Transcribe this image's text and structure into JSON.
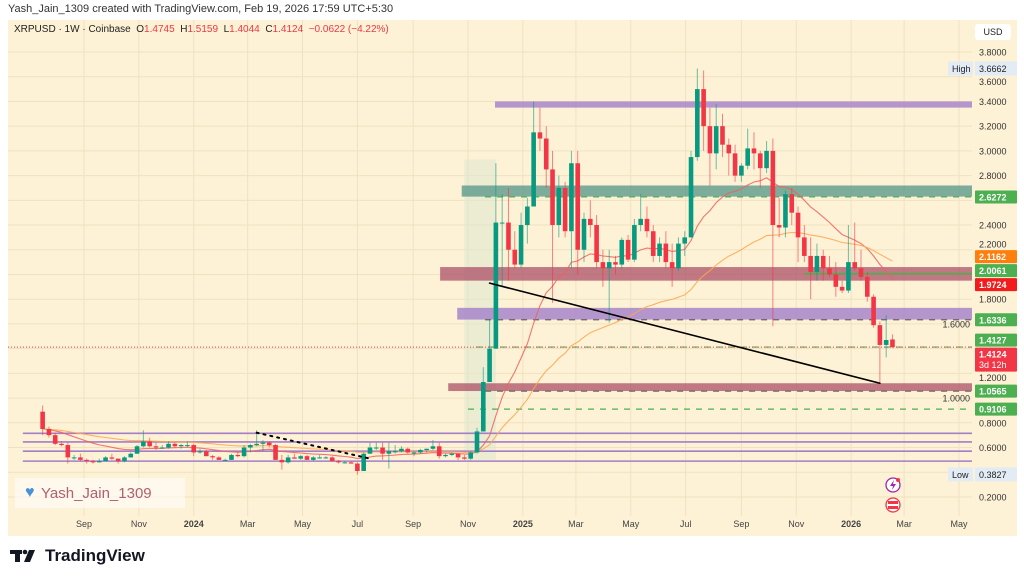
{
  "header": {
    "credit": "Yash_Jain_1309 created with TradingView.com, Feb 19, 2026 17:59 UTC+5:30"
  },
  "legend": {
    "symbol": "XRPUSD · 1W · Coinbase",
    "o_label": "O",
    "o": "1.4745",
    "h_label": "H",
    "h": "1.5159",
    "l_label": "L",
    "l": "1.4044",
    "c_label": "C",
    "c": "1.4124",
    "change": "−0.0622 (−4.22%)"
  },
  "axis": {
    "currency": "USD"
  },
  "watermark": {
    "text": "Yash_Jain_1309",
    "icon": "blue-heart-icon"
  },
  "footer": {
    "brand": "TradingView",
    "icon": "tradingview-logo-icon"
  },
  "colors": {
    "up": "#089981",
    "down": "#f23645",
    "background": "#fdf2d6",
    "ema_fast": "#f0605a",
    "ema_slow": "#ffa64d",
    "zone_purple": "#a37ec9",
    "zone_teal": "#5d9a8c",
    "zone_red": "#b0596e",
    "level_green": "#4caf50"
  },
  "bottom_icons": [
    "lightning-icon",
    "us-flag-icon"
  ],
  "chart_data": {
    "type": "candlestick",
    "symbol": "XRPUSD",
    "interval": "1W",
    "ylim": [
      0.1,
      3.95
    ],
    "y_ticks": [
      "3.8000",
      "3.6000",
      "3.4000",
      "3.2000",
      "3.0000",
      "2.8000",
      "2.4000",
      "2.2000",
      "1.8000",
      "1.6000",
      "1.2000",
      "1.0000",
      "0.8000",
      "0.6000",
      "0.2000"
    ],
    "x_ticks": [
      {
        "label": "Sep",
        "date": "2023-09-01"
      },
      {
        "label": "Nov",
        "date": "2023-11-01"
      },
      {
        "label": "2024",
        "date": "2024-01-01",
        "bold": true
      },
      {
        "label": "Mar",
        "date": "2024-03-01"
      },
      {
        "label": "May",
        "date": "2024-05-01"
      },
      {
        "label": "Jul",
        "date": "2024-07-01"
      },
      {
        "label": "Sep",
        "date": "2024-09-01"
      },
      {
        "label": "Nov",
        "date": "2024-11-01"
      },
      {
        "label": "2025",
        "date": "2025-01-01",
        "bold": true
      },
      {
        "label": "Mar",
        "date": "2025-03-01"
      },
      {
        "label": "May",
        "date": "2025-05-01"
      },
      {
        "label": "Jul",
        "date": "2025-07-01"
      },
      {
        "label": "Sep",
        "date": "2025-09-01"
      },
      {
        "label": "Nov",
        "date": "2025-11-01"
      },
      {
        "label": "2026",
        "date": "2026-01-01",
        "bold": true
      },
      {
        "label": "Mar",
        "date": "2026-03-01"
      },
      {
        "label": "May",
        "date": "2026-05-01"
      }
    ],
    "high": {
      "label": "High",
      "value": "3.6662"
    },
    "low": {
      "label": "Low",
      "value": "0.3827"
    },
    "price_badges": [
      {
        "value": "2.6272",
        "color": "#4caf50"
      },
      {
        "value": "2.1162",
        "color": "#ff7f0e"
      },
      {
        "value": "2.0061",
        "color": "#4caf50"
      },
      {
        "value": "1.9724",
        "color": "#f21c1c"
      },
      {
        "value": "1.6336",
        "color": "#4caf50"
      },
      {
        "value": "1.4127",
        "color": "#4caf50"
      },
      {
        "value": "1.4124",
        "color": "#f23645",
        "sub": "3d 12h"
      },
      {
        "value": "1.0565",
        "color": "#4caf50"
      },
      {
        "value": "0.9106",
        "color": "#4caf50"
      }
    ],
    "zones": [
      {
        "from": "2024-12-01",
        "top": 3.4,
        "bottom": 3.35,
        "color": "#a37ec9"
      },
      {
        "from": "2024-10-25",
        "top": 2.72,
        "bottom": 2.63,
        "color": "#5d9a8c"
      },
      {
        "from": "2024-10-01",
        "top": 2.06,
        "bottom": 1.95,
        "color": "#b0596e"
      },
      {
        "from": "2024-10-20",
        "top": 1.73,
        "bottom": 1.635,
        "color": "#a37ec9"
      },
      {
        "from": "2024-10-10",
        "top": 1.12,
        "bottom": 1.057,
        "color": "#b0596e"
      }
    ],
    "horizontal_lines": [
      {
        "price": 2.6272,
        "from": "2024-11-20",
        "style": "dashed",
        "color": "#4caf50"
      },
      {
        "price": 2.0061,
        "from": "2025-11-10",
        "style": "solid",
        "color": "#4caf50"
      },
      {
        "price": 1.6336,
        "from": "2024-11-20",
        "style": "dashed",
        "color": "#666666"
      },
      {
        "price": 1.4127,
        "from": "2024-11-10",
        "style": "dashed",
        "color": "#4caf50"
      },
      {
        "price": 1.0565,
        "from": "2024-11-20",
        "style": "dashed",
        "color": "#666666"
      },
      {
        "price": 0.9106,
        "from": "2024-11-01",
        "style": "dashed",
        "color": "#4caf50"
      },
      {
        "price": 0.715,
        "from": "2023-06-25",
        "style": "solid",
        "color": "#a37ec9"
      },
      {
        "price": 0.645,
        "from": "2023-06-25",
        "style": "solid",
        "color": "#a37ec9"
      },
      {
        "price": 0.57,
        "from": "2023-06-25",
        "style": "solid",
        "color": "#a37ec9"
      },
      {
        "price": 0.49,
        "from": "2023-06-25",
        "style": "solid",
        "color": "#a37ec9"
      }
    ],
    "last_price_line": {
      "price": 1.4124,
      "color": "#f23645"
    },
    "trend_lines": [
      {
        "from": {
          "date": "2024-11-25",
          "price": 1.93
        },
        "to": {
          "date": "2026-02-02",
          "price": 1.12
        },
        "style": "solid",
        "color": "#000000"
      },
      {
        "from": {
          "date": "2024-03-11",
          "price": 0.72
        },
        "to": {
          "date": "2024-07-15",
          "price": 0.51
        },
        "style": "dotted",
        "color": "#000000"
      }
    ],
    "date_range_box": {
      "from": "2024-10-28",
      "to": "2024-12-02",
      "top": 2.93,
      "bottom": 0.5
    },
    "candles": [
      [
        "2023-07-17",
        0.89,
        0.94,
        0.7,
        0.75
      ],
      [
        "2023-07-24",
        0.75,
        0.77,
        0.68,
        0.7
      ],
      [
        "2023-07-31",
        0.7,
        0.72,
        0.62,
        0.63
      ],
      [
        "2023-08-07",
        0.63,
        0.65,
        0.61,
        0.62
      ],
      [
        "2023-08-14",
        0.62,
        0.64,
        0.47,
        0.52
      ],
      [
        "2023-08-21",
        0.52,
        0.54,
        0.5,
        0.52
      ],
      [
        "2023-08-28",
        0.52,
        0.55,
        0.49,
        0.5
      ],
      [
        "2023-09-04",
        0.5,
        0.51,
        0.47,
        0.49
      ],
      [
        "2023-09-11",
        0.49,
        0.5,
        0.47,
        0.48
      ],
      [
        "2023-09-18",
        0.48,
        0.51,
        0.48,
        0.49
      ],
      [
        "2023-09-25",
        0.49,
        0.53,
        0.49,
        0.52
      ],
      [
        "2023-10-02",
        0.52,
        0.55,
        0.5,
        0.51
      ],
      [
        "2023-10-09",
        0.51,
        0.51,
        0.47,
        0.49
      ],
      [
        "2023-10-16",
        0.49,
        0.53,
        0.48,
        0.52
      ],
      [
        "2023-10-23",
        0.52,
        0.56,
        0.52,
        0.55
      ],
      [
        "2023-10-30",
        0.55,
        0.62,
        0.55,
        0.61
      ],
      [
        "2023-11-06",
        0.61,
        0.74,
        0.6,
        0.65
      ],
      [
        "2023-11-13",
        0.65,
        0.68,
        0.6,
        0.61
      ],
      [
        "2023-11-20",
        0.61,
        0.64,
        0.58,
        0.6
      ],
      [
        "2023-11-27",
        0.6,
        0.62,
        0.59,
        0.6
      ],
      [
        "2023-12-04",
        0.6,
        0.65,
        0.59,
        0.63
      ],
      [
        "2023-12-11",
        0.63,
        0.64,
        0.6,
        0.61
      ],
      [
        "2023-12-18",
        0.61,
        0.63,
        0.59,
        0.62
      ],
      [
        "2023-12-25",
        0.62,
        0.65,
        0.6,
        0.62
      ],
      [
        "2024-01-01",
        0.62,
        0.63,
        0.53,
        0.56
      ],
      [
        "2024-01-08",
        0.56,
        0.59,
        0.55,
        0.57
      ],
      [
        "2024-01-15",
        0.57,
        0.58,
        0.53,
        0.53
      ],
      [
        "2024-01-22",
        0.53,
        0.54,
        0.5,
        0.52
      ],
      [
        "2024-01-29",
        0.52,
        0.53,
        0.5,
        0.5
      ],
      [
        "2024-02-05",
        0.5,
        0.51,
        0.49,
        0.5
      ],
      [
        "2024-02-12",
        0.5,
        0.55,
        0.5,
        0.54
      ],
      [
        "2024-02-19",
        0.54,
        0.56,
        0.52,
        0.53
      ],
      [
        "2024-02-26",
        0.53,
        0.62,
        0.52,
        0.6
      ],
      [
        "2024-03-04",
        0.6,
        0.63,
        0.56,
        0.62
      ],
      [
        "2024-03-11",
        0.62,
        0.74,
        0.61,
        0.63
      ],
      [
        "2024-03-18",
        0.63,
        0.66,
        0.57,
        0.64
      ],
      [
        "2024-03-25",
        0.64,
        0.65,
        0.6,
        0.62
      ],
      [
        "2024-04-01",
        0.62,
        0.63,
        0.5,
        0.5
      ],
      [
        "2024-04-08",
        0.5,
        0.54,
        0.42,
        0.48
      ],
      [
        "2024-04-15",
        0.48,
        0.54,
        0.47,
        0.52
      ],
      [
        "2024-04-22",
        0.52,
        0.55,
        0.51,
        0.51
      ],
      [
        "2024-04-29",
        0.51,
        0.54,
        0.5,
        0.53
      ],
      [
        "2024-05-06",
        0.53,
        0.54,
        0.5,
        0.5
      ],
      [
        "2024-05-13",
        0.5,
        0.53,
        0.49,
        0.52
      ],
      [
        "2024-05-20",
        0.52,
        0.54,
        0.51,
        0.52
      ],
      [
        "2024-05-27",
        0.52,
        0.53,
        0.51,
        0.52
      ],
      [
        "2024-06-03",
        0.52,
        0.53,
        0.49,
        0.49
      ],
      [
        "2024-06-10",
        0.49,
        0.5,
        0.47,
        0.48
      ],
      [
        "2024-06-17",
        0.48,
        0.49,
        0.47,
        0.48
      ],
      [
        "2024-06-24",
        0.48,
        0.49,
        0.47,
        0.47
      ],
      [
        "2024-07-01",
        0.47,
        0.48,
        0.38,
        0.41
      ],
      [
        "2024-07-08",
        0.41,
        0.56,
        0.41,
        0.55
      ],
      [
        "2024-07-15",
        0.55,
        0.64,
        0.55,
        0.6
      ],
      [
        "2024-07-22",
        0.6,
        0.64,
        0.58,
        0.6
      ],
      [
        "2024-07-29",
        0.6,
        0.64,
        0.5,
        0.55
      ],
      [
        "2024-08-05",
        0.55,
        0.64,
        0.43,
        0.57
      ],
      [
        "2024-08-12",
        0.57,
        0.62,
        0.55,
        0.57
      ],
      [
        "2024-08-19",
        0.57,
        0.61,
        0.56,
        0.59
      ],
      [
        "2024-08-26",
        0.59,
        0.6,
        0.55,
        0.56
      ],
      [
        "2024-09-02",
        0.56,
        0.57,
        0.53,
        0.56
      ],
      [
        "2024-09-09",
        0.56,
        0.59,
        0.55,
        0.58
      ],
      [
        "2024-09-16",
        0.58,
        0.59,
        0.56,
        0.59
      ],
      [
        "2024-09-23",
        0.59,
        0.66,
        0.58,
        0.61
      ],
      [
        "2024-09-30",
        0.61,
        0.64,
        0.51,
        0.53
      ],
      [
        "2024-10-07",
        0.53,
        0.55,
        0.52,
        0.54
      ],
      [
        "2024-10-14",
        0.54,
        0.56,
        0.53,
        0.55
      ],
      [
        "2024-10-21",
        0.55,
        0.55,
        0.5,
        0.52
      ],
      [
        "2024-10-28",
        0.52,
        0.54,
        0.5,
        0.51
      ],
      [
        "2024-11-04",
        0.51,
        0.57,
        0.5,
        0.56
      ],
      [
        "2024-11-11",
        0.56,
        0.76,
        0.55,
        0.73
      ],
      [
        "2024-11-18",
        0.73,
        1.25,
        0.73,
        1.13
      ],
      [
        "2024-11-25",
        1.13,
        1.63,
        1.13,
        1.4
      ],
      [
        "2024-12-02",
        1.4,
        2.9,
        1.4,
        2.42
      ],
      [
        "2024-12-09",
        2.42,
        2.65,
        1.9,
        2.42
      ],
      [
        "2024-12-16",
        2.42,
        2.7,
        1.95,
        2.2
      ],
      [
        "2024-12-23",
        2.2,
        2.35,
        2.05,
        2.08
      ],
      [
        "2024-12-30",
        2.08,
        2.5,
        2.05,
        2.4
      ],
      [
        "2025-01-06",
        2.4,
        2.62,
        2.25,
        2.55
      ],
      [
        "2025-01-13",
        2.55,
        3.4,
        2.55,
        3.15
      ],
      [
        "2025-01-20",
        3.15,
        3.35,
        3.0,
        3.1
      ],
      [
        "2025-01-27",
        3.1,
        3.2,
        2.7,
        2.85
      ],
      [
        "2025-02-03",
        2.85,
        3.0,
        1.77,
        2.4
      ],
      [
        "2025-02-10",
        2.4,
        2.8,
        2.3,
        2.7
      ],
      [
        "2025-02-17",
        2.7,
        2.75,
        2.3,
        2.35
      ],
      [
        "2025-02-24",
        2.35,
        3.0,
        2.05,
        2.9
      ],
      [
        "2025-03-03",
        2.9,
        3.0,
        2.0,
        2.2
      ],
      [
        "2025-03-10",
        2.2,
        2.5,
        2.1,
        2.45
      ],
      [
        "2025-03-17",
        2.45,
        2.6,
        2.3,
        2.4
      ],
      [
        "2025-03-24",
        2.4,
        2.48,
        2.05,
        2.1
      ],
      [
        "2025-03-31",
        2.1,
        2.2,
        1.9,
        2.05
      ],
      [
        "2025-04-07",
        2.05,
        2.2,
        1.61,
        2.1
      ],
      [
        "2025-04-14",
        2.1,
        2.15,
        2.0,
        2.08
      ],
      [
        "2025-04-21",
        2.08,
        2.3,
        2.05,
        2.28
      ],
      [
        "2025-04-28",
        2.28,
        2.32,
        2.1,
        2.12
      ],
      [
        "2025-05-05",
        2.12,
        2.45,
        2.1,
        2.4
      ],
      [
        "2025-05-12",
        2.4,
        2.65,
        2.35,
        2.45
      ],
      [
        "2025-05-19",
        2.45,
        2.55,
        2.3,
        2.35
      ],
      [
        "2025-05-26",
        2.35,
        2.4,
        2.1,
        2.15
      ],
      [
        "2025-06-02",
        2.15,
        2.3,
        2.1,
        2.25
      ],
      [
        "2025-06-09",
        2.25,
        2.35,
        2.05,
        2.1
      ],
      [
        "2025-06-16",
        2.1,
        2.25,
        1.9,
        2.05
      ],
      [
        "2025-06-23",
        2.05,
        2.3,
        2.03,
        2.25
      ],
      [
        "2025-06-30",
        2.25,
        2.35,
        2.15,
        2.3
      ],
      [
        "2025-07-07",
        2.3,
        3.0,
        2.3,
        2.95
      ],
      [
        "2025-07-14",
        2.95,
        3.6662,
        2.92,
        3.5
      ],
      [
        "2025-07-21",
        3.5,
        3.65,
        3.0,
        3.2
      ],
      [
        "2025-07-28",
        3.2,
        3.35,
        2.72,
        2.98
      ],
      [
        "2025-08-04",
        2.98,
        3.38,
        2.85,
        3.2
      ],
      [
        "2025-08-11",
        3.2,
        3.3,
        2.95,
        3.05
      ],
      [
        "2025-08-18",
        3.05,
        3.1,
        2.8,
        2.98
      ],
      [
        "2025-08-25",
        2.98,
        3.05,
        2.75,
        2.8
      ],
      [
        "2025-09-01",
        2.8,
        2.9,
        2.75,
        2.88
      ],
      [
        "2025-09-08",
        2.88,
        3.18,
        2.85,
        3.02
      ],
      [
        "2025-09-15",
        3.02,
        3.15,
        2.85,
        2.98
      ],
      [
        "2025-09-22",
        2.98,
        3.0,
        2.7,
        2.86
      ],
      [
        "2025-09-29",
        2.86,
        3.08,
        2.82,
        3.0
      ],
      [
        "2025-10-06",
        3.0,
        3.1,
        1.58,
        2.4
      ],
      [
        "2025-10-13",
        2.4,
        2.62,
        2.3,
        2.38
      ],
      [
        "2025-10-20",
        2.38,
        2.68,
        2.3,
        2.65
      ],
      [
        "2025-10-27",
        2.65,
        2.7,
        2.4,
        2.5
      ],
      [
        "2025-11-03",
        2.5,
        2.55,
        2.1,
        2.3
      ],
      [
        "2025-11-10",
        2.3,
        2.4,
        2.1,
        2.15
      ],
      [
        "2025-11-17",
        2.15,
        2.3,
        1.8,
        2.02
      ],
      [
        "2025-11-24",
        2.02,
        2.25,
        1.95,
        2.15
      ],
      [
        "2025-12-01",
        2.15,
        2.2,
        1.95,
        2.05
      ],
      [
        "2025-12-08",
        2.05,
        2.15,
        1.98,
        2.0
      ],
      [
        "2025-12-15",
        2.0,
        2.1,
        1.82,
        1.9
      ],
      [
        "2025-12-22",
        1.9,
        1.95,
        1.85,
        1.87
      ],
      [
        "2025-12-29",
        1.87,
        2.4,
        1.85,
        2.1
      ],
      [
        "2026-01-05",
        2.1,
        2.42,
        2.03,
        2.05
      ],
      [
        "2026-01-12",
        2.05,
        2.2,
        1.95,
        1.98
      ],
      [
        "2026-01-19",
        1.98,
        2.02,
        1.78,
        1.82
      ],
      [
        "2026-01-26",
        1.82,
        1.84,
        1.57,
        1.59
      ],
      [
        "2026-02-02",
        1.59,
        1.62,
        1.12,
        1.43
      ],
      [
        "2026-02-09",
        1.43,
        1.67,
        1.33,
        1.47
      ],
      [
        "2026-02-16",
        1.4745,
        1.5159,
        1.4044,
        1.4124
      ]
    ]
  }
}
